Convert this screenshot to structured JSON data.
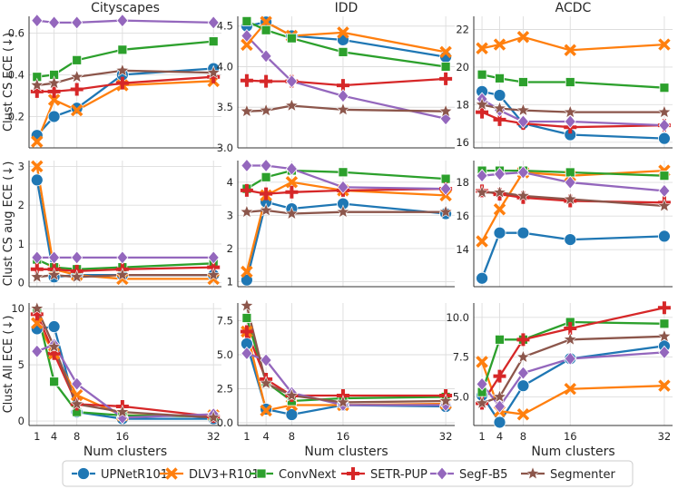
{
  "chart_data": {
    "type": "line",
    "x": [
      1,
      4,
      8,
      16,
      32
    ],
    "xlabel": "Num clusters",
    "columns": [
      "Cityscapes",
      "IDD",
      "ACDC"
    ],
    "row_ylabels": [
      "Clust CS ECE (↓)",
      "Clust CS aug ECE (↓)",
      "Clust All ECE (↓)"
    ],
    "series_meta": [
      {
        "name": "UPNetR101",
        "color": "#1f77b4",
        "marker": "circle"
      },
      {
        "name": "DLV3+R101",
        "color": "#ff7f0e",
        "marker": "x"
      },
      {
        "name": "ConvNext",
        "color": "#2ca02c",
        "marker": "square"
      },
      {
        "name": "SETR-PUP",
        "color": "#d62728",
        "marker": "plus"
      },
      {
        "name": "SegF-B5",
        "color": "#9467bd",
        "marker": "diamond"
      },
      {
        "name": "Segmenter",
        "color": "#8c564b",
        "marker": "star"
      }
    ],
    "panels": [
      {
        "row": 0,
        "col": 0,
        "ylim": [
          0.05,
          0.68
        ],
        "yticks": [
          0.2,
          0.4,
          0.6
        ],
        "ytick_labels": [
          "0.2",
          "0.4",
          "0.6"
        ],
        "series": [
          [
            0.11,
            0.2,
            0.24,
            0.4,
            0.43
          ],
          [
            0.08,
            0.28,
            0.23,
            0.35,
            0.37
          ],
          [
            0.39,
            0.4,
            0.47,
            0.52,
            0.56
          ],
          [
            0.32,
            0.32,
            0.33,
            0.36,
            0.39
          ],
          [
            0.66,
            0.65,
            0.65,
            0.66,
            0.65
          ],
          [
            0.35,
            0.36,
            0.39,
            0.42,
            0.41
          ]
        ]
      },
      {
        "row": 0,
        "col": 1,
        "ylim": [
          3.0,
          4.62
        ],
        "yticks": [
          3.0,
          3.5,
          4.0,
          4.5
        ],
        "ytick_labels": [
          "3.0",
          "3.5",
          "4.0",
          "4.5"
        ],
        "series": [
          [
            4.5,
            4.55,
            4.38,
            4.33,
            4.12
          ],
          [
            4.27,
            4.55,
            4.38,
            4.42,
            4.18
          ],
          [
            4.56,
            4.45,
            4.35,
            4.18,
            4.0
          ],
          [
            3.83,
            3.82,
            3.82,
            3.77,
            3.85
          ],
          [
            4.38,
            4.13,
            3.82,
            3.64,
            3.36
          ],
          [
            3.45,
            3.46,
            3.52,
            3.47,
            3.45
          ]
        ]
      },
      {
        "row": 0,
        "col": 2,
        "ylim": [
          15.7,
          22.7
        ],
        "yticks": [
          16,
          18,
          20,
          22
        ],
        "ytick_labels": [
          "16",
          "18",
          "20",
          "22"
        ],
        "series": [
          [
            18.7,
            18.5,
            17.0,
            16.4,
            16.2
          ],
          [
            21.0,
            21.2,
            21.6,
            20.9,
            21.2
          ],
          [
            19.6,
            19.4,
            19.2,
            19.2,
            18.9
          ],
          [
            17.6,
            17.2,
            17.0,
            16.8,
            16.9
          ],
          [
            18.3,
            17.7,
            17.1,
            17.1,
            16.9
          ],
          [
            18.0,
            17.8,
            17.7,
            17.6,
            17.6
          ]
        ]
      },
      {
        "row": 1,
        "col": 0,
        "ylim": [
          -0.1,
          3.15
        ],
        "yticks": [
          0,
          1,
          2,
          3
        ],
        "ytick_labels": [
          "0",
          "1",
          "2",
          "3"
        ],
        "series": [
          [
            2.65,
            0.15,
            0.2,
            0.2,
            0.2
          ],
          [
            3.0,
            0.35,
            0.2,
            0.1,
            0.1
          ],
          [
            0.6,
            0.4,
            0.35,
            0.4,
            0.5
          ],
          [
            0.35,
            0.35,
            0.3,
            0.35,
            0.4
          ],
          [
            0.65,
            0.65,
            0.65,
            0.65,
            0.65
          ],
          [
            0.15,
            0.2,
            0.15,
            0.2,
            0.2
          ]
        ]
      },
      {
        "row": 1,
        "col": 1,
        "ylim": [
          0.85,
          4.65
        ],
        "yticks": [
          1,
          2,
          3,
          4
        ],
        "ytick_labels": [
          "1",
          "2",
          "3",
          "4"
        ],
        "series": [
          [
            1.05,
            3.4,
            3.2,
            3.35,
            3.05
          ],
          [
            1.3,
            3.6,
            4.0,
            3.75,
            3.6
          ],
          [
            3.8,
            4.15,
            4.35,
            4.3,
            4.1
          ],
          [
            3.75,
            3.65,
            3.7,
            3.75,
            3.8
          ],
          [
            4.5,
            4.5,
            4.4,
            3.85,
            3.8
          ],
          [
            3.1,
            3.15,
            3.05,
            3.1,
            3.1
          ]
        ]
      },
      {
        "row": 1,
        "col": 2,
        "ylim": [
          11.8,
          19.3
        ],
        "yticks": [
          14,
          16,
          18
        ],
        "ytick_labels": [
          "14",
          "16",
          "18"
        ],
        "series": [
          [
            12.3,
            15.0,
            15.0,
            14.6,
            14.8
          ],
          [
            14.5,
            16.4,
            18.6,
            18.4,
            18.7
          ],
          [
            18.7,
            18.7,
            18.7,
            18.6,
            18.4
          ],
          [
            17.5,
            17.3,
            17.1,
            16.9,
            16.8
          ],
          [
            18.4,
            18.5,
            18.6,
            18.0,
            17.5
          ],
          [
            17.4,
            17.4,
            17.2,
            17.0,
            16.6
          ]
        ]
      },
      {
        "row": 2,
        "col": 0,
        "ylim": [
          -0.4,
          10.5
        ],
        "yticks": [
          0,
          5,
          10
        ],
        "ytick_labels": [
          "0",
          "5",
          "10"
        ],
        "series": [
          [
            8.2,
            8.4,
            0.8,
            0.2,
            0.2
          ],
          [
            8.7,
            6.0,
            2.3,
            0.5,
            0.5
          ],
          [
            9.8,
            3.5,
            0.8,
            0.5,
            0.4
          ],
          [
            9.5,
            6.0,
            1.5,
            1.3,
            0.4
          ],
          [
            6.2,
            6.8,
            3.3,
            0.3,
            0.6
          ],
          [
            10.0,
            6.6,
            1.5,
            0.8,
            0.3
          ]
        ]
      },
      {
        "row": 2,
        "col": 1,
        "ylim": [
          -0.2,
          8.8
        ],
        "yticks": [
          0.0,
          2.5,
          5.0,
          7.5
        ],
        "ytick_labels": [
          "0.0",
          "2.5",
          "5.0",
          "7.5"
        ],
        "series": [
          [
            5.8,
            1.0,
            0.6,
            1.3,
            1.2
          ],
          [
            6.7,
            0.9,
            1.3,
            1.3,
            1.4
          ],
          [
            7.7,
            3.0,
            1.6,
            1.8,
            1.9
          ],
          [
            6.7,
            3.2,
            2.0,
            2.0,
            2.0
          ],
          [
            5.1,
            4.6,
            2.2,
            1.3,
            1.3
          ],
          [
            8.6,
            2.9,
            2.0,
            1.5,
            1.6
          ]
        ]
      },
      {
        "row": 2,
        "col": 2,
        "ylim": [
          3.2,
          10.9
        ],
        "yticks": [
          5.0,
          7.5,
          10.0
        ],
        "ytick_labels": [
          "5.0",
          "7.5",
          "10.0"
        ],
        "series": [
          [
            5.1,
            3.4,
            5.7,
            7.4,
            8.2
          ],
          [
            7.2,
            4.1,
            3.9,
            5.5,
            5.7
          ],
          [
            5.3,
            8.6,
            8.6,
            9.7,
            9.6
          ],
          [
            4.6,
            6.3,
            8.6,
            9.3,
            10.6
          ],
          [
            5.8,
            4.4,
            6.5,
            7.4,
            7.8
          ],
          [
            4.6,
            5.0,
            7.5,
            8.6,
            8.8
          ]
        ]
      }
    ]
  }
}
